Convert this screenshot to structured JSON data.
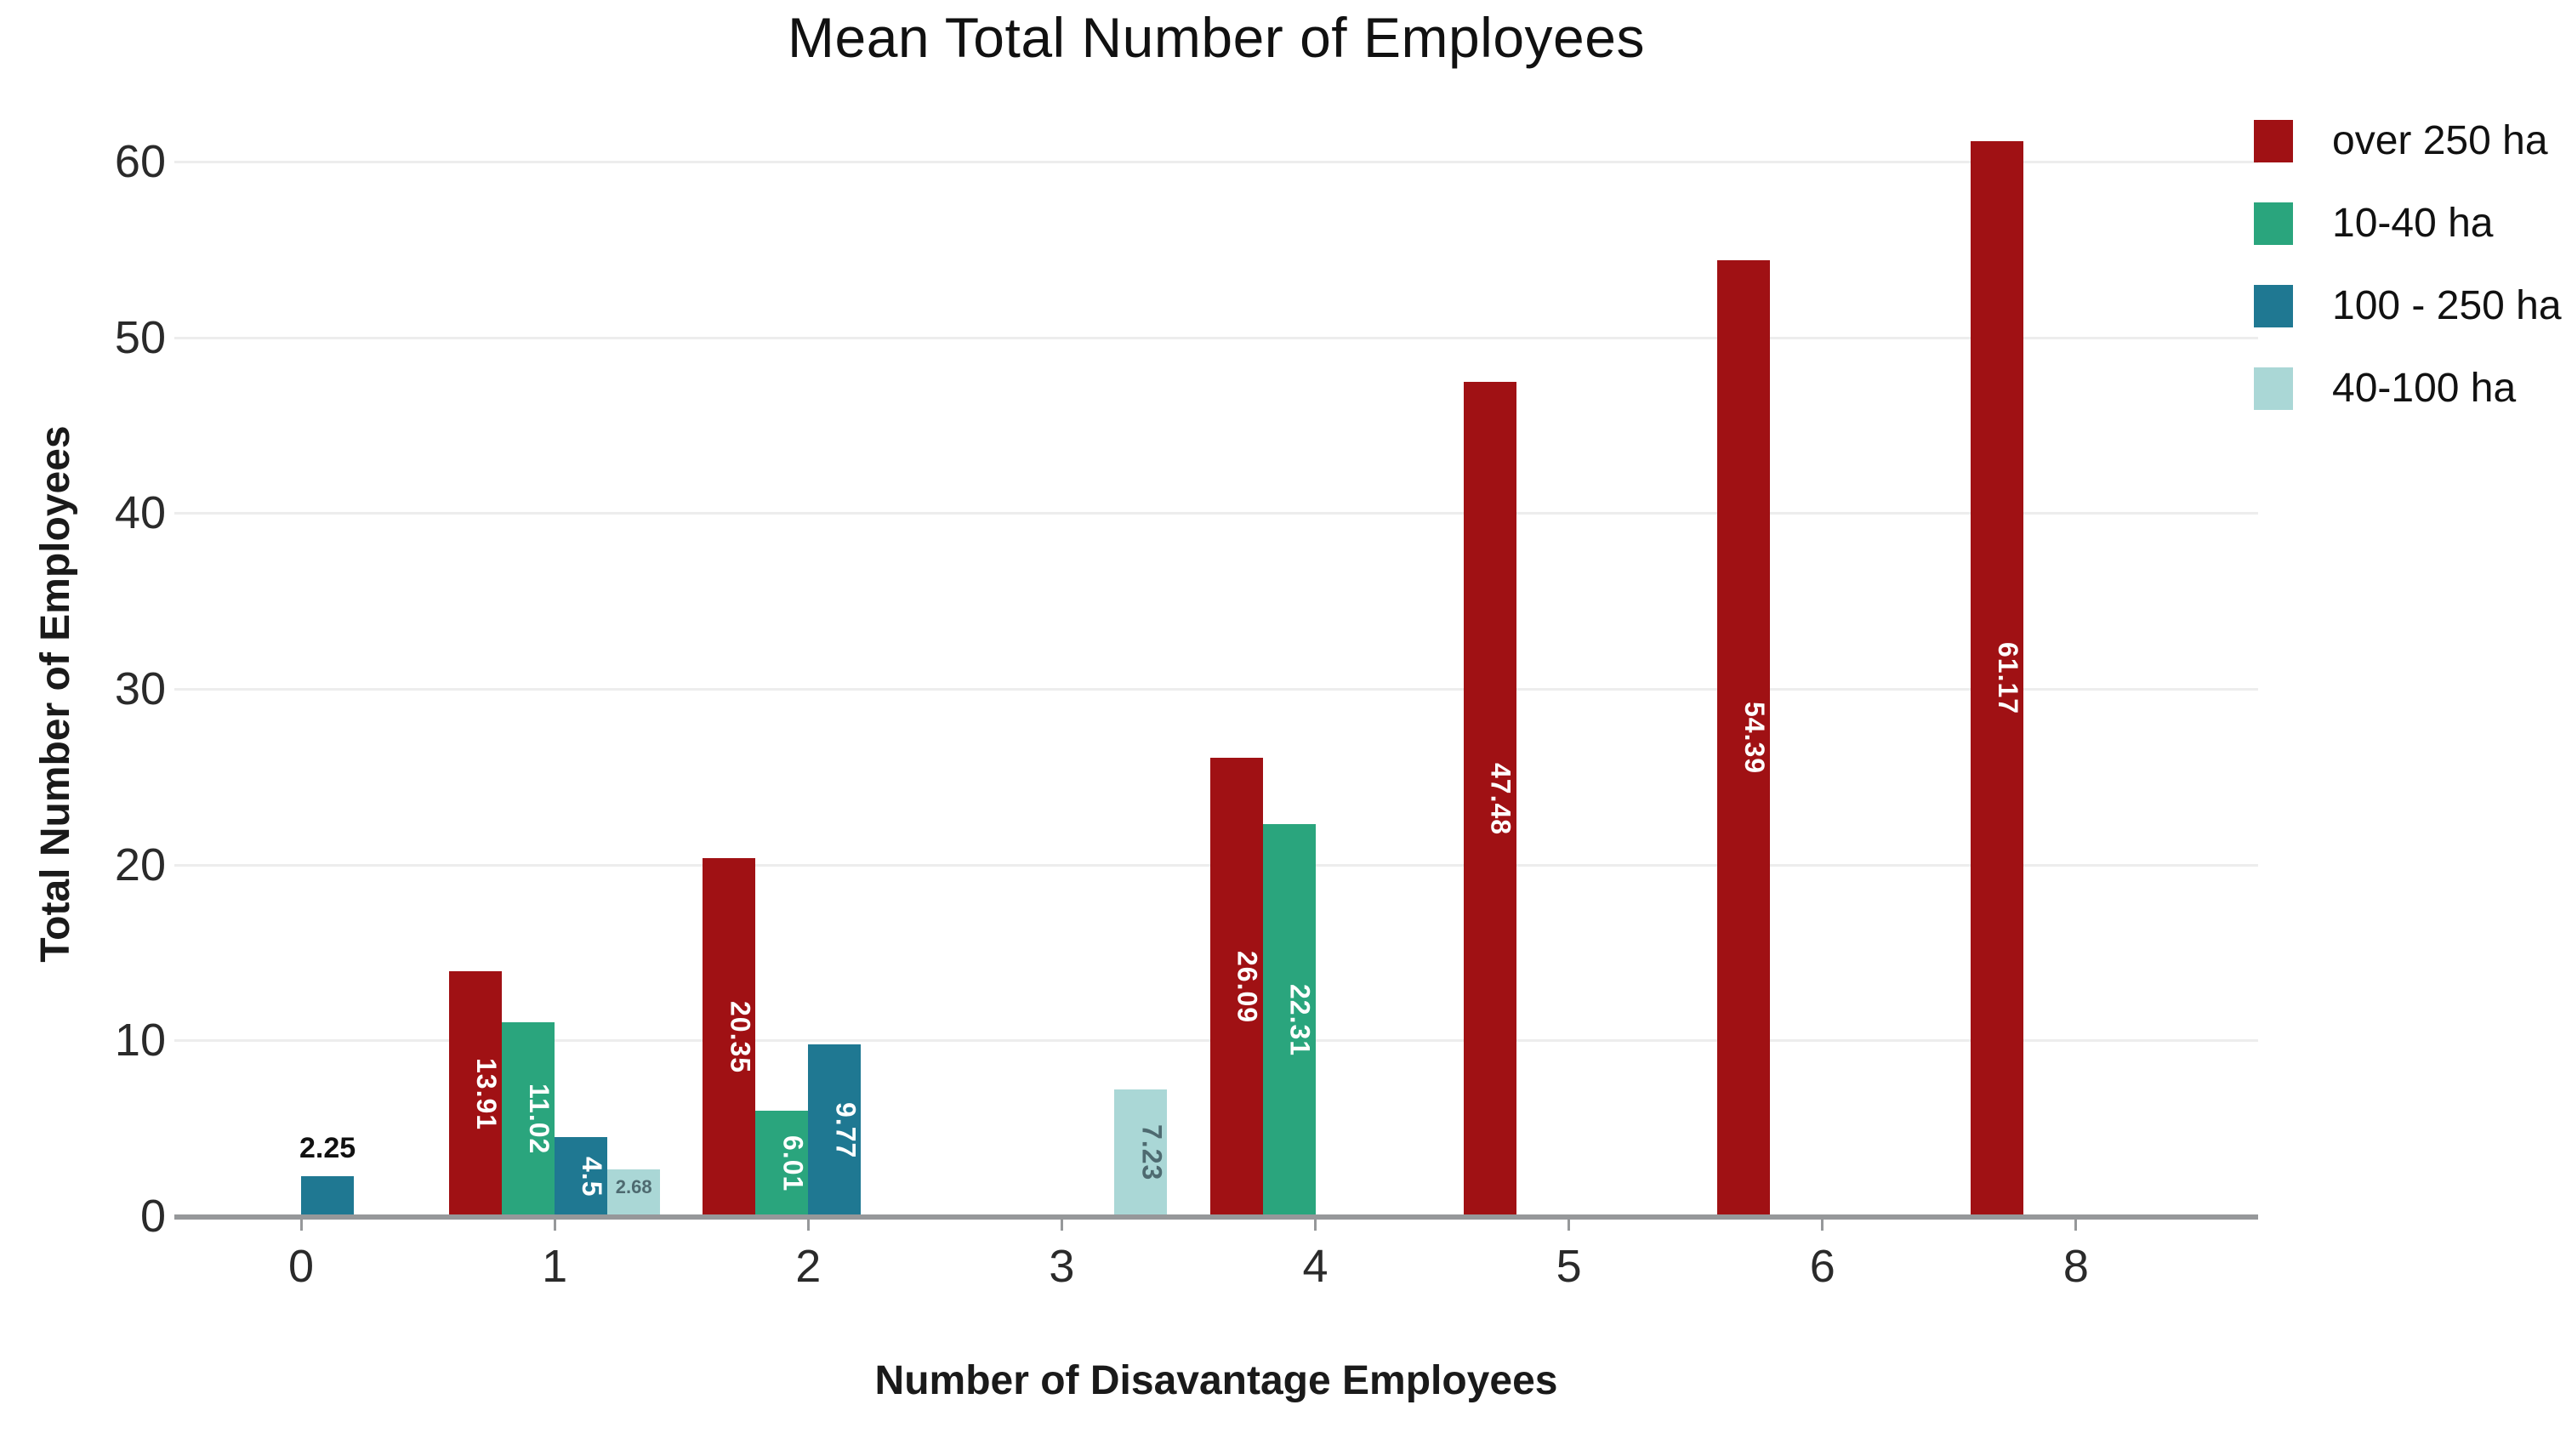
{
  "chart_data": {
    "type": "bar",
    "title": "Mean Total Number of Employees",
    "xlabel": "Number of Disavantage Employees",
    "ylabel": "Total Number of Employees",
    "categories": [
      "0",
      "1",
      "2",
      "3",
      "4",
      "5",
      "6",
      "8"
    ],
    "y_ticks": [
      0,
      10,
      20,
      30,
      40,
      50,
      60
    ],
    "ylim": [
      0,
      62
    ],
    "grid": "horizontal",
    "legend_position": "top-right",
    "series": [
      {
        "name": "over 250 ha",
        "color": "#a01114",
        "label_color": "#ffffff",
        "values": [
          null,
          13.91,
          20.35,
          null,
          26.09,
          47.48,
          54.39,
          61.17
        ]
      },
      {
        "name": "10-40 ha",
        "color": "#2aa57d",
        "label_color": "#ffffff",
        "values": [
          null,
          11.02,
          6.01,
          null,
          22.31,
          null,
          null,
          null
        ]
      },
      {
        "name": "100 - 250 ha",
        "color": "#1f7892",
        "label_color": "#ffffff",
        "values": [
          2.25,
          4.5,
          9.77,
          null,
          null,
          null,
          null,
          null
        ]
      },
      {
        "name": "40-100 ha",
        "color": "#aad7d6",
        "label_color": "#4e6a70",
        "values": [
          null,
          2.68,
          null,
          7.23,
          null,
          null,
          null,
          null
        ]
      }
    ],
    "outside_label_color": "#111111",
    "axis_line_color": "#96989a",
    "gridline_color": "#ededed"
  }
}
